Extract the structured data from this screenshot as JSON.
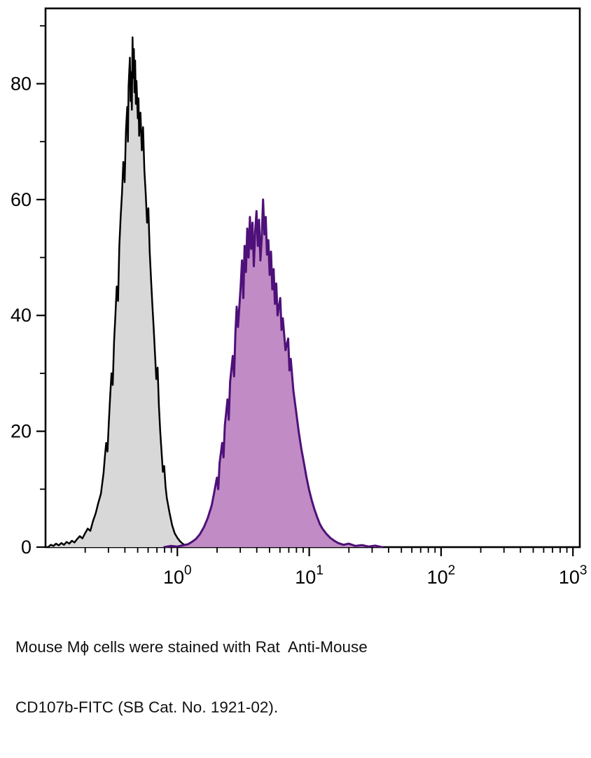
{
  "caption": {
    "line1": "Mouse Mϕ cells were stained with Rat  Anti-Mouse",
    "line2": "CD107b-FITC (SB Cat. No. 1921-02)."
  },
  "chart_data": {
    "type": "area",
    "subtype": "flow-cytometry-histogram-overlay",
    "title": "",
    "xlabel": "",
    "ylabel": "",
    "x_scale": "log10",
    "xlim_log10": [
      -1,
      3.05
    ],
    "ylim": [
      0,
      93
    ],
    "grid": false,
    "legend": null,
    "yticks": [
      0,
      20,
      40,
      60,
      80
    ],
    "y_minor_tick_step": 10,
    "x_ticks": [
      {
        "base": "10",
        "exp": 0
      },
      {
        "base": "10",
        "exp": 1
      },
      {
        "base": "10",
        "exp": 2
      },
      {
        "base": "10",
        "exp": 3
      }
    ],
    "x_minor_ticks_per_decade": [
      2,
      3,
      4,
      5,
      6,
      7,
      8,
      9
    ],
    "axis_color": "#000000",
    "series": [
      {
        "id": "control-gray",
        "name": "gray histogram (black outline) - control",
        "line_color": "#000000",
        "fill_color": "#d8d8d8",
        "line_width": 2.5,
        "peak": {
          "log10x": -0.34,
          "count": 88
        },
        "points": [
          [
            -0.98,
            0
          ],
          [
            -0.96,
            0.4
          ],
          [
            -0.94,
            0.2
          ],
          [
            -0.92,
            0.6
          ],
          [
            -0.9,
            0.3
          ],
          [
            -0.88,
            0.7
          ],
          [
            -0.86,
            0.4
          ],
          [
            -0.84,
            0.9
          ],
          [
            -0.82,
            0.6
          ],
          [
            -0.8,
            1.1
          ],
          [
            -0.78,
            0.8
          ],
          [
            -0.76,
            1.4
          ],
          [
            -0.74,
            1.9
          ],
          [
            -0.72,
            1.5
          ],
          [
            -0.7,
            2.4
          ],
          [
            -0.68,
            3.2
          ],
          [
            -0.66,
            2.8
          ],
          [
            -0.64,
            4.5
          ],
          [
            -0.62,
            5.8
          ],
          [
            -0.6,
            7.6
          ],
          [
            -0.58,
            9.2
          ],
          [
            -0.56,
            12.8
          ],
          [
            -0.55,
            15.5
          ],
          [
            -0.54,
            18
          ],
          [
            -0.53,
            16.5
          ],
          [
            -0.52,
            21.5
          ],
          [
            -0.51,
            26
          ],
          [
            -0.5,
            30
          ],
          [
            -0.49,
            28
          ],
          [
            -0.48,
            35.5
          ],
          [
            -0.47,
            40
          ],
          [
            -0.46,
            45
          ],
          [
            -0.45,
            42.5
          ],
          [
            -0.44,
            52
          ],
          [
            -0.43,
            57
          ],
          [
            -0.42,
            61
          ],
          [
            -0.41,
            66.5
          ],
          [
            -0.4,
            63
          ],
          [
            -0.39,
            72
          ],
          [
            -0.38,
            76
          ],
          [
            -0.375,
            70
          ],
          [
            -0.37,
            79.5
          ],
          [
            -0.36,
            84.5
          ],
          [
            -0.355,
            77
          ],
          [
            -0.35,
            82
          ],
          [
            -0.345,
            75.5
          ],
          [
            -0.34,
            88
          ],
          [
            -0.335,
            81
          ],
          [
            -0.33,
            86
          ],
          [
            -0.325,
            78.5
          ],
          [
            -0.32,
            84
          ],
          [
            -0.315,
            76.5
          ],
          [
            -0.31,
            80.5
          ],
          [
            -0.3,
            74
          ],
          [
            -0.295,
            77.5
          ],
          [
            -0.29,
            71
          ],
          [
            -0.28,
            75
          ],
          [
            -0.27,
            68.5
          ],
          [
            -0.26,
            72.5
          ],
          [
            -0.25,
            65
          ],
          [
            -0.24,
            61
          ],
          [
            -0.23,
            56
          ],
          [
            -0.22,
            58.5
          ],
          [
            -0.21,
            51
          ],
          [
            -0.2,
            46.5
          ],
          [
            -0.19,
            42
          ],
          [
            -0.18,
            38
          ],
          [
            -0.17,
            33.5
          ],
          [
            -0.16,
            29
          ],
          [
            -0.15,
            31
          ],
          [
            -0.14,
            24.5
          ],
          [
            -0.13,
            20
          ],
          [
            -0.12,
            16.5
          ],
          [
            -0.11,
            13
          ],
          [
            -0.1,
            14
          ],
          [
            -0.09,
            10.5
          ],
          [
            -0.08,
            8.5
          ],
          [
            -0.06,
            6
          ],
          [
            -0.04,
            3.8
          ],
          [
            -0.02,
            2.4
          ],
          [
            0,
            1.6
          ],
          [
            0.02,
            1
          ],
          [
            0.04,
            0.6
          ],
          [
            0.06,
            0.3
          ],
          [
            0.08,
            0.15
          ],
          [
            0.1,
            0
          ]
        ]
      },
      {
        "id": "cd107b-purple",
        "name": "purple histogram (violet fill) - CD107b-FITC stained",
        "line_color": "#4e1079",
        "fill_color": "#c18cc5",
        "line_width": 3,
        "peak": {
          "log10x": 0.65,
          "count": 60
        },
        "points": [
          [
            -0.1,
            0
          ],
          [
            -0.05,
            0.2
          ],
          [
            0,
            0.1
          ],
          [
            0.04,
            0.3
          ],
          [
            0.08,
            0.5
          ],
          [
            0.11,
            0.9
          ],
          [
            0.14,
            1.4
          ],
          [
            0.17,
            2.2
          ],
          [
            0.2,
            3.4
          ],
          [
            0.23,
            5
          ],
          [
            0.26,
            7.2
          ],
          [
            0.28,
            9.5
          ],
          [
            0.3,
            12
          ],
          [
            0.31,
            10
          ],
          [
            0.32,
            14.5
          ],
          [
            0.34,
            18
          ],
          [
            0.35,
            15.5
          ],
          [
            0.36,
            21
          ],
          [
            0.38,
            25.5
          ],
          [
            0.39,
            22
          ],
          [
            0.4,
            28.5
          ],
          [
            0.42,
            33
          ],
          [
            0.43,
            29.5
          ],
          [
            0.44,
            37
          ],
          [
            0.45,
            41.5
          ],
          [
            0.46,
            38
          ],
          [
            0.48,
            45
          ],
          [
            0.49,
            49.5
          ],
          [
            0.5,
            43
          ],
          [
            0.51,
            52
          ],
          [
            0.52,
            47.5
          ],
          [
            0.53,
            55
          ],
          [
            0.54,
            50
          ],
          [
            0.55,
            57
          ],
          [
            0.56,
            51.5
          ],
          [
            0.57,
            56
          ],
          [
            0.58,
            48.5
          ],
          [
            0.59,
            54.5
          ],
          [
            0.6,
            58
          ],
          [
            0.61,
            52
          ],
          [
            0.62,
            56.5
          ],
          [
            0.63,
            49.5
          ],
          [
            0.64,
            53.5
          ],
          [
            0.65,
            60
          ],
          [
            0.66,
            54
          ],
          [
            0.67,
            57
          ],
          [
            0.68,
            50.5
          ],
          [
            0.69,
            53
          ],
          [
            0.7,
            47
          ],
          [
            0.71,
            51
          ],
          [
            0.72,
            44.5
          ],
          [
            0.73,
            48
          ],
          [
            0.74,
            42
          ],
          [
            0.75,
            45.5
          ],
          [
            0.76,
            40
          ],
          [
            0.78,
            43
          ],
          [
            0.79,
            37.5
          ],
          [
            0.8,
            39.5
          ],
          [
            0.82,
            34
          ],
          [
            0.84,
            36
          ],
          [
            0.85,
            30.5
          ],
          [
            0.86,
            32.5
          ],
          [
            0.88,
            27
          ],
          [
            0.9,
            23.5
          ],
          [
            0.92,
            20
          ],
          [
            0.94,
            17
          ],
          [
            0.96,
            14.5
          ],
          [
            0.98,
            12
          ],
          [
            1.0,
            9.8
          ],
          [
            1.02,
            8
          ],
          [
            1.04,
            6.5
          ],
          [
            1.06,
            5.2
          ],
          [
            1.08,
            4
          ],
          [
            1.1,
            3.2
          ],
          [
            1.13,
            2.3
          ],
          [
            1.16,
            1.6
          ],
          [
            1.19,
            1.1
          ],
          [
            1.22,
            0.7
          ],
          [
            1.26,
            0.4
          ],
          [
            1.3,
            0.6
          ],
          [
            1.35,
            0.2
          ],
          [
            1.4,
            0.35
          ],
          [
            1.45,
            0.1
          ],
          [
            1.5,
            0.25
          ],
          [
            1.55,
            0
          ]
        ]
      }
    ]
  }
}
